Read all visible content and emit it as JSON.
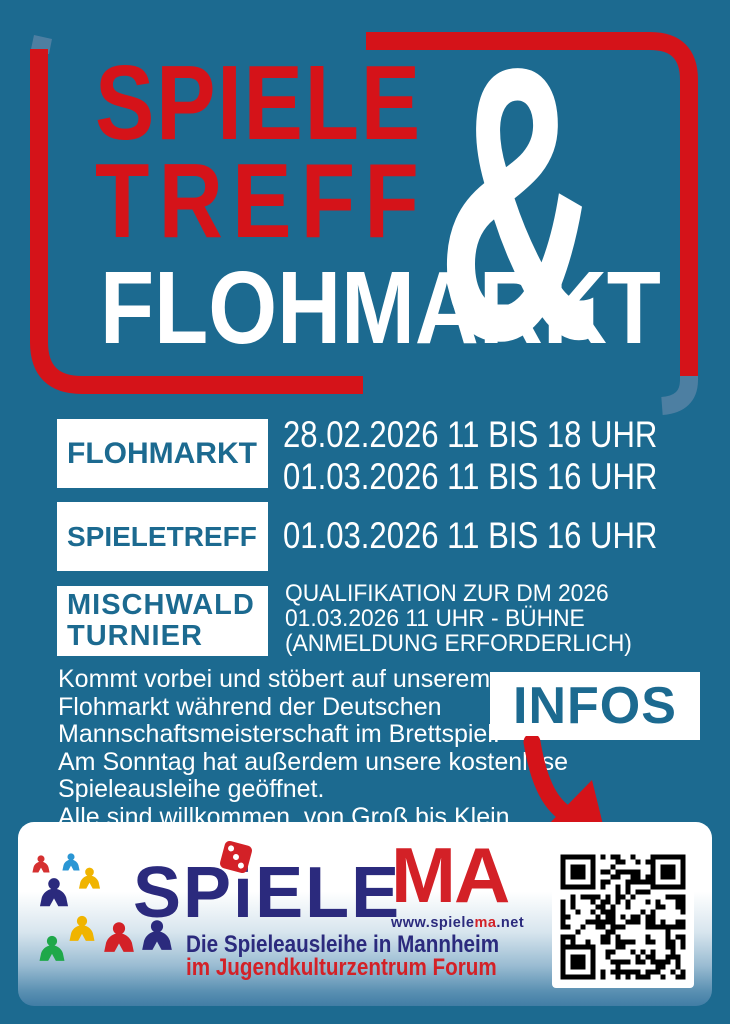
{
  "title": {
    "line1": "SPIELE",
    "line2": "TREFF",
    "amp": "&",
    "line3": "FLOHMARKT"
  },
  "schedule": {
    "flohmarkt": {
      "label": "FLOHMARKT",
      "date1": "28.02.2026 11 BIS 18 UHR",
      "date2": "01.03.2026 11 BIS 16 UHR"
    },
    "spieletreff": {
      "label": "SPIELETREFF",
      "date1": "01.03.2026 11 BIS 16 UHR"
    },
    "turnier": {
      "label1": "MISCHWALD",
      "label2": "TURNIER",
      "info1": "QUALIFIKATION ZUR DM 2026",
      "info2": "01.03.2026 11 UHR - BÜHNE",
      "info3": "(ANMELDUNG ERFORDERLICH)"
    }
  },
  "description": {
    "line1": "Kommt vorbei und stöbert auf unserem",
    "line2": "Flohmarkt während der Deutschen",
    "line3": "Mannschaftsmeisterschaft im Brettspiel.",
    "line4": "Am Sonntag hat außerdem unsere kostenlose",
    "line5": "Spieleausleihe geöffnet.",
    "line6": "Alle sind willkommen, von Groß bis Klein."
  },
  "infos": {
    "label": "INFOS"
  },
  "footer": {
    "brand": {
      "part1": "SP",
      "part2": "i",
      "part3": "ELE",
      "part4": "MA"
    },
    "url": {
      "part1": "www.spiele",
      "part2": "ma",
      "part3": ".net"
    },
    "tagline1": "Die Spieleausleihe in Mannheim",
    "tagline2": "im Jugendkulturzentrum Forum"
  },
  "colors": {
    "background": "#1c6a90",
    "accent_red": "#d51319",
    "accent_light_blue": "#4d7fa2",
    "brand_navy": "#2b2a7d",
    "brand_red": "#d32127",
    "text_white": "#ffffff"
  }
}
